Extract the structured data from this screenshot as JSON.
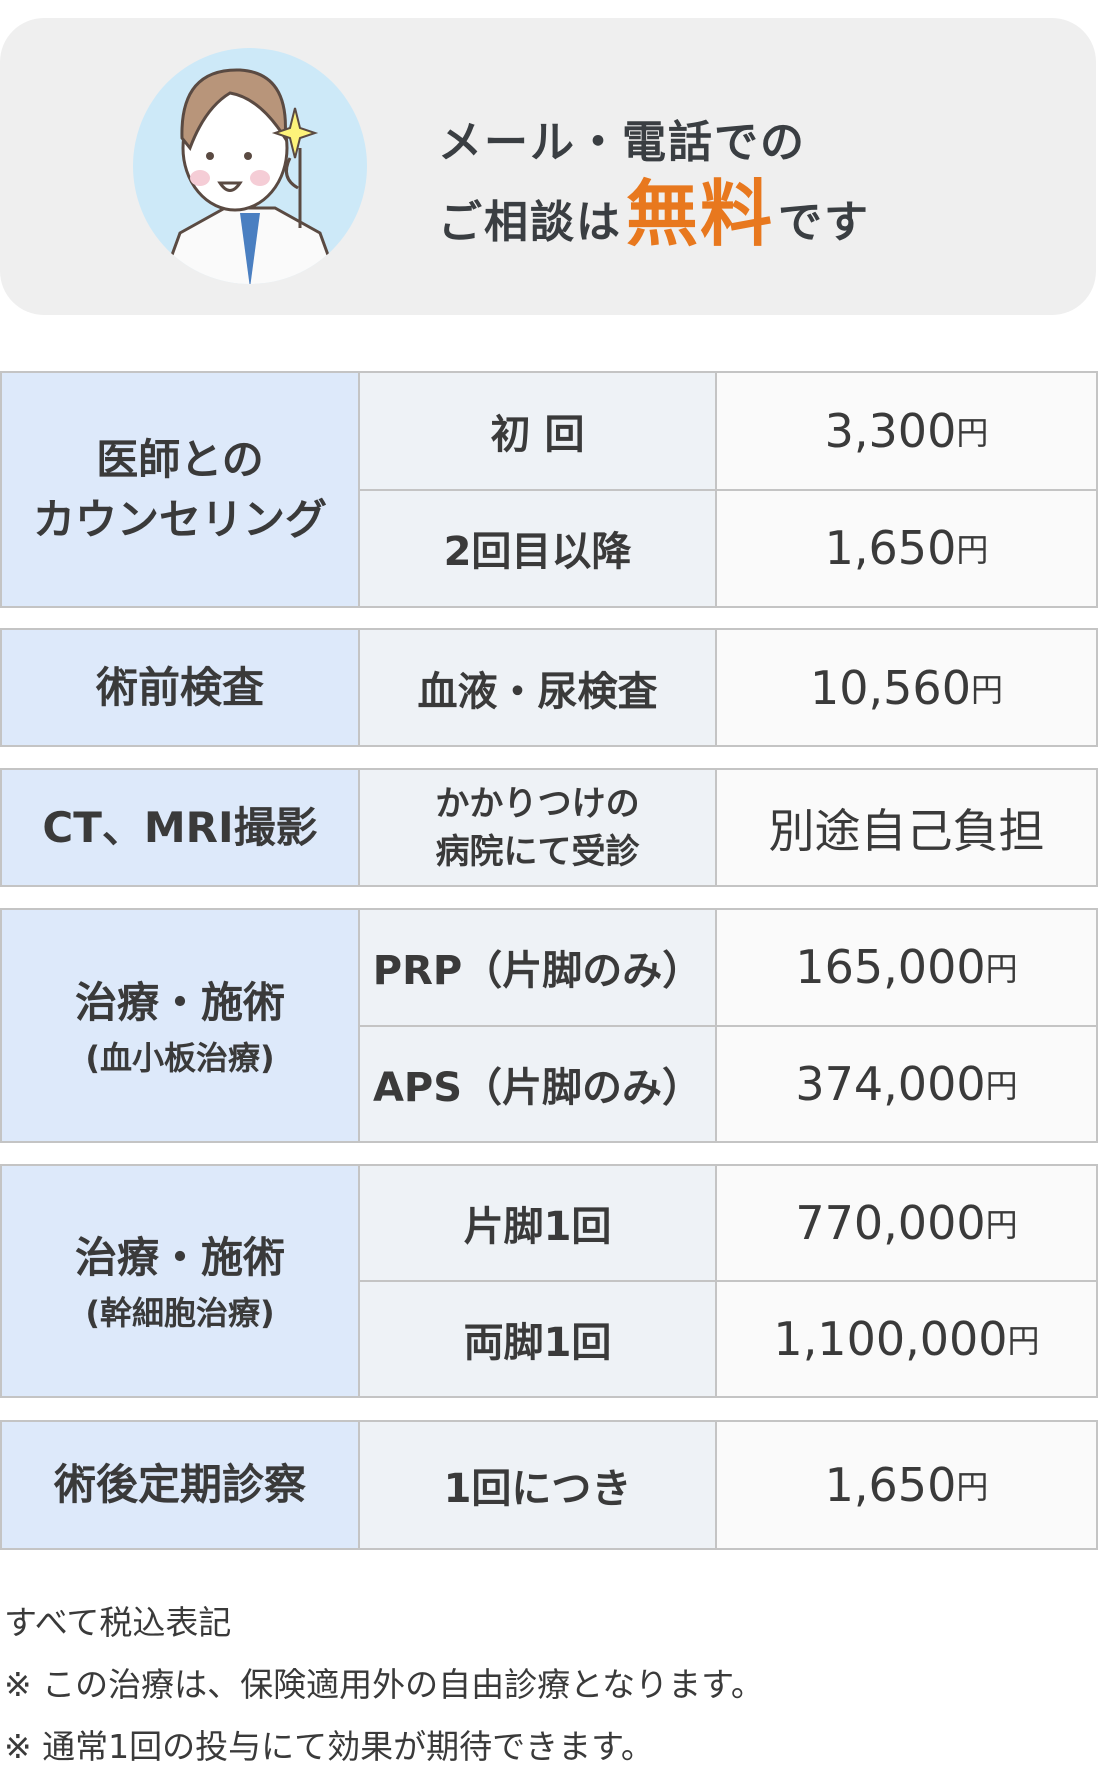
{
  "banner": {
    "line1": "メール・電話での",
    "line2_prefix": "ご相談は",
    "line2_highlight": "無料",
    "line2_suffix": "です",
    "highlight_color": "#e8781e",
    "illustration": "doctor-ok-gesture"
  },
  "table": {
    "groups": [
      {
        "label": [
          "医師との",
          "カウンセリング"
        ],
        "rows": [
          {
            "item": [
              "初 回"
            ],
            "price": "3,300",
            "unit": "円"
          },
          {
            "item": [
              "2回目以降"
            ],
            "price": "1,650",
            "unit": "円"
          }
        ]
      },
      {
        "label": [
          "術前検査"
        ],
        "rows": [
          {
            "item": [
              "血液・尿検査"
            ],
            "price": "10,560",
            "unit": "円"
          }
        ]
      },
      {
        "label": [
          "CT、MRI撮影"
        ],
        "rows": [
          {
            "item": [
              "かかりつけの",
              "病院にて受診"
            ],
            "price": "別途自己負担",
            "unit": ""
          }
        ]
      },
      {
        "label": [
          "治療・施術"
        ],
        "sublabel": "(血小板治療)",
        "rows": [
          {
            "item": [
              "PRP（片脚のみ）"
            ],
            "price": "165,000",
            "unit": "円"
          },
          {
            "item": [
              "APS（片脚のみ）"
            ],
            "price": "374,000",
            "unit": "円"
          }
        ]
      },
      {
        "label": [
          "治療・施術"
        ],
        "sublabel": "(幹細胞治療)",
        "rows": [
          {
            "item": [
              "片脚1回"
            ],
            "price": "770,000",
            "unit": "円"
          },
          {
            "item": [
              "両脚1回"
            ],
            "price": "1,100,000",
            "unit": "円"
          }
        ]
      },
      {
        "label": [
          "術後定期診察"
        ],
        "rows": [
          {
            "item": [
              "1回につき"
            ],
            "price": "1,650",
            "unit": "円"
          }
        ]
      }
    ]
  },
  "notes": [
    "すべて税込表記",
    "※ この治療は、保険適用外の自由診療となります。",
    "※ 通常1回の投与にて効果が期待できます。"
  ]
}
